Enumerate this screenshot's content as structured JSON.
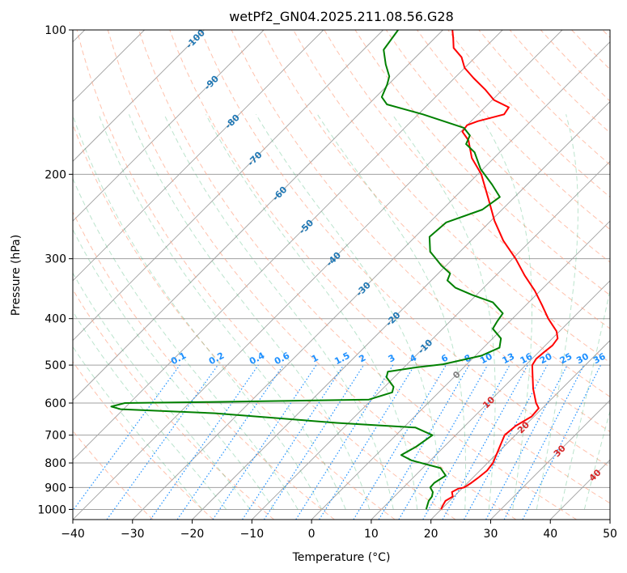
{
  "chart_data": {
    "type": "line",
    "title": "wetPf2_GN04.2025.211.08.56.G28",
    "xlabel": "Temperature (°C)",
    "ylabel": "Pressure (hPa)",
    "xlim": [
      -40,
      50
    ],
    "ylim": [
      1050,
      100
    ],
    "y_scale": "log",
    "grid": true,
    "x_ticks": [
      "−40",
      "−30",
      "−20",
      "−10",
      "0",
      "10",
      "20",
      "30",
      "40",
      "50"
    ],
    "y_ticks": [
      "100",
      "200",
      "300",
      "400",
      "500",
      "600",
      "700",
      "800",
      "900",
      "1000"
    ],
    "colors": {
      "temperature": "#ff0000",
      "dewpoint": "#008000",
      "isotherm": "#a0a0a0",
      "dry_adiabat": "#ff9f80",
      "moist_adiabat": "#3cb371",
      "mixing_ratio": "#1e90ff",
      "isotherm_label": "#1f77b4",
      "warm_label": "#d62728",
      "zero_label": "#808080"
    },
    "series": [
      {
        "key": "temperature",
        "points": [
          [
            20.0,
            1000
          ],
          [
            19.6,
            980
          ],
          [
            19.3,
            960
          ],
          [
            19.8,
            940
          ],
          [
            18.9,
            920
          ],
          [
            19.4,
            905
          ],
          [
            20.2,
            900
          ],
          [
            20.6,
            880
          ],
          [
            20.9,
            860
          ],
          [
            21.2,
            830
          ],
          [
            20.9,
            800
          ],
          [
            19.6,
            750
          ],
          [
            18.2,
            700
          ],
          [
            18.5,
            670
          ],
          [
            19.6,
            640
          ],
          [
            19.4,
            615
          ],
          [
            18.1,
            600
          ],
          [
            15.2,
            560
          ],
          [
            12.5,
            520
          ],
          [
            11.1,
            500
          ],
          [
            10.7,
            485
          ],
          [
            10.9,
            470
          ],
          [
            11.2,
            455
          ],
          [
            10.9,
            440
          ],
          [
            9.5,
            425
          ],
          [
            6.0,
            400
          ],
          [
            2.7,
            375
          ],
          [
            -0.9,
            350
          ],
          [
            -5.2,
            325
          ],
          [
            -9.5,
            300
          ],
          [
            -14.6,
            275
          ],
          [
            -19.4,
            250
          ],
          [
            -24.1,
            225
          ],
          [
            -29.4,
            200
          ],
          [
            -33.7,
            185
          ],
          [
            -37.2,
            170
          ],
          [
            -39.7,
            163
          ],
          [
            -40.0,
            158
          ],
          [
            -38.9,
            155
          ],
          [
            -35.6,
            150
          ],
          [
            -36.0,
            145
          ],
          [
            -39.7,
            140
          ],
          [
            -43.0,
            133
          ],
          [
            -46.8,
            126
          ],
          [
            -50.0,
            120
          ],
          [
            -52.3,
            114
          ],
          [
            -55.2,
            109
          ],
          [
            -56.9,
            104
          ],
          [
            -58.4,
            100
          ]
        ]
      },
      {
        "key": "dewpoint",
        "points": [
          [
            17.5,
            1000
          ],
          [
            17.0,
            980
          ],
          [
            16.5,
            960
          ],
          [
            16.3,
            940
          ],
          [
            15.7,
            920
          ],
          [
            14.5,
            900
          ],
          [
            14.4,
            880
          ],
          [
            15.1,
            850
          ],
          [
            13.0,
            820
          ],
          [
            6.8,
            790
          ],
          [
            4.2,
            770
          ],
          [
            5.3,
            740
          ],
          [
            6.1,
            700
          ],
          [
            2.0,
            675
          ],
          [
            -12.0,
            660
          ],
          [
            -34.0,
            630
          ],
          [
            -50.5,
            618
          ],
          [
            -52.5,
            610
          ],
          [
            -50.8,
            600
          ],
          [
            -37.0,
            597
          ],
          [
            -10.5,
            590
          ],
          [
            -7.8,
            570
          ],
          [
            -8.5,
            555
          ],
          [
            -11.3,
            530
          ],
          [
            -12.0,
            516
          ],
          [
            -7.8,
            505
          ],
          [
            -4.0,
            498
          ],
          [
            1.0,
            478
          ],
          [
            2.7,
            460
          ],
          [
            1.4,
            440
          ],
          [
            -1.6,
            420
          ],
          [
            -2.1,
            405
          ],
          [
            -2.5,
            390
          ],
          [
            -6.0,
            370
          ],
          [
            -10.7,
            357
          ],
          [
            -14.7,
            345
          ],
          [
            -17.3,
            333
          ],
          [
            -18.0,
            322
          ],
          [
            -20.8,
            310
          ],
          [
            -25.0,
            290
          ],
          [
            -27.6,
            270
          ],
          [
            -27.2,
            252
          ],
          [
            -23.3,
            237
          ],
          [
            -22.5,
            223
          ],
          [
            -25.9,
            210
          ],
          [
            -30.4,
            195
          ],
          [
            -34.2,
            180
          ],
          [
            -37.0,
            173
          ],
          [
            -37.8,
            166
          ],
          [
            -40.1,
            160
          ],
          [
            -49.2,
            150
          ],
          [
            -56.9,
            143
          ],
          [
            -59.0,
            138
          ],
          [
            -60.2,
            130
          ],
          [
            -61.2,
            125
          ],
          [
            -63.8,
            118
          ],
          [
            -66.6,
            110
          ],
          [
            -67.5,
            100
          ]
        ]
      }
    ],
    "isotherm_labels": [
      "-100",
      "-90",
      "-80",
      "-70",
      "-60",
      "-50",
      "-40",
      "-30",
      "-20",
      "-10"
    ],
    "warm_labels": [
      "10",
      "20",
      "30",
      "40"
    ],
    "zero_label": "0",
    "mixing_ratio_labels": [
      "0.1",
      "0.2",
      "0.4",
      "0.6",
      "1",
      "1.5",
      "2",
      "3",
      "4",
      "6",
      "8",
      "10",
      "13",
      "16",
      "20",
      "25",
      "30",
      "36"
    ],
    "mixing_ratios": [
      0.1,
      0.2,
      0.4,
      0.6,
      1,
      1.5,
      2,
      3,
      4,
      6,
      8,
      10,
      13,
      16,
      20,
      25,
      30,
      36
    ]
  }
}
